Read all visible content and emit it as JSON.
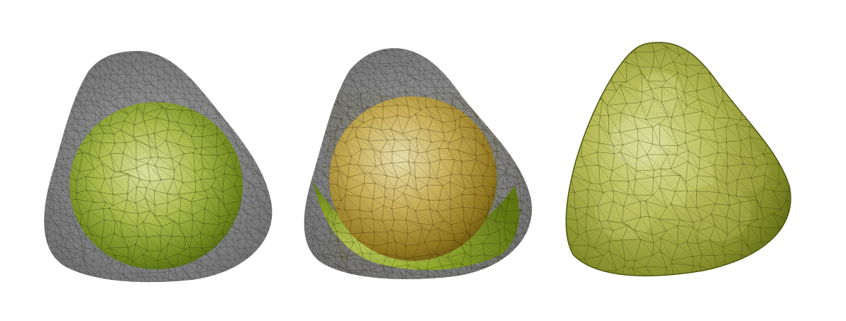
{
  "scene": {
    "background": "#ffffff",
    "panel_count": 3,
    "panels": [
      {
        "id": "mesh-stage-1",
        "outer_mesh": "gray-wireframe",
        "inner_body": "green-sphere",
        "colors": {
          "outer": "#6f6f6f",
          "inner_light": "#e8f0a2",
          "inner_dark": "#5e7a12"
        }
      },
      {
        "id": "mesh-stage-2",
        "outer_mesh": "gray-wireframe",
        "inner_body": "golden-sphere-with-green-fill",
        "colors": {
          "outer": "#6f6f6f",
          "inner_light": "#f4e6a8",
          "inner_dark": "#8a6a12",
          "fill": "#7d9a22"
        }
      },
      {
        "id": "mesh-stage-3",
        "outer_mesh": "none",
        "inner_body": "green-filled-triangular-volume",
        "colors": {
          "light": "#eef2a0",
          "dark": "#6a7a14"
        }
      }
    ]
  }
}
